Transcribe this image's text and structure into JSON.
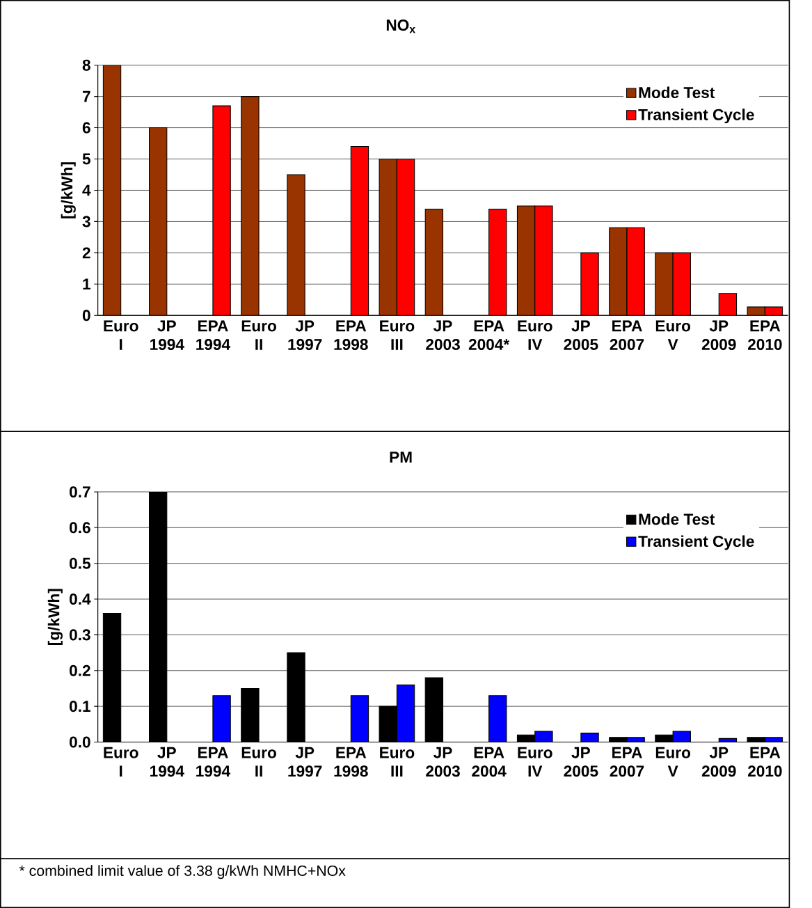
{
  "chart_data": [
    {
      "type": "bar",
      "title": "NO$_{x}$",
      "ylabel": "[g/kWh]",
      "categories": [
        "Euro I",
        "JP 1994",
        "EPA 1994",
        "Euro II",
        "JP 1997",
        "EPA 1998",
        "Euro III",
        "JP 2003",
        "EPA 2004*",
        "Euro IV",
        "JP 2005",
        "EPA 2007",
        "Euro V",
        "JP 2009",
        "EPA 2010"
      ],
      "series": [
        {
          "name": "Mode Test",
          "color": "#993300",
          "values": [
            8,
            6,
            null,
            7,
            4.5,
            null,
            5,
            3.4,
            null,
            3.5,
            null,
            2.8,
            2,
            null,
            0.27
          ]
        },
        {
          "name": "Transient Cycle",
          "color": "#ff0000",
          "values": [
            null,
            null,
            6.7,
            null,
            null,
            5.4,
            5,
            null,
            3.4,
            3.5,
            2,
            2.8,
            2,
            0.7,
            0.27
          ]
        }
      ],
      "ylim": [
        0,
        8
      ],
      "yticks": [
        0,
        1,
        2,
        3,
        4,
        5,
        6,
        7,
        8
      ],
      "grid": "y",
      "legend": "top right"
    },
    {
      "type": "bar",
      "title": "PM",
      "ylabel": "[g/kWh]",
      "categories": [
        "Euro I",
        "JP 1994",
        "EPA 1994",
        "Euro II",
        "JP 1997",
        "EPA 1998",
        "Euro III",
        "JP 2003",
        "EPA 2004",
        "Euro IV",
        "JP 2005",
        "EPA 2007",
        "Euro V",
        "JP 2009",
        "EPA 2010"
      ],
      "series": [
        {
          "name": "Mode Test",
          "color": "#000000",
          "values": [
            0.36,
            0.7,
            null,
            0.15,
            0.25,
            null,
            0.1,
            0.18,
            null,
            0.02,
            null,
            0.013,
            0.02,
            null,
            0.013
          ]
        },
        {
          "name": "Transient Cycle",
          "color": "#0000ff",
          "values": [
            null,
            null,
            0.13,
            null,
            null,
            0.13,
            0.16,
            null,
            0.13,
            0.03,
            0.025,
            0.013,
            0.03,
            0.01,
            0.013
          ]
        }
      ],
      "ylim": [
        0,
        0.7
      ],
      "yticks": [
        {
          "value": 0,
          "label": "0.0"
        },
        0.1,
        0.2,
        0.3,
        0.4,
        0.5,
        0.6,
        0.7
      ],
      "grid": "y",
      "legend": "top right",
      "annotations": [
        "* combined limit value of 3.38 g/kWh NMHC+NOx"
      ]
    }
  ]
}
